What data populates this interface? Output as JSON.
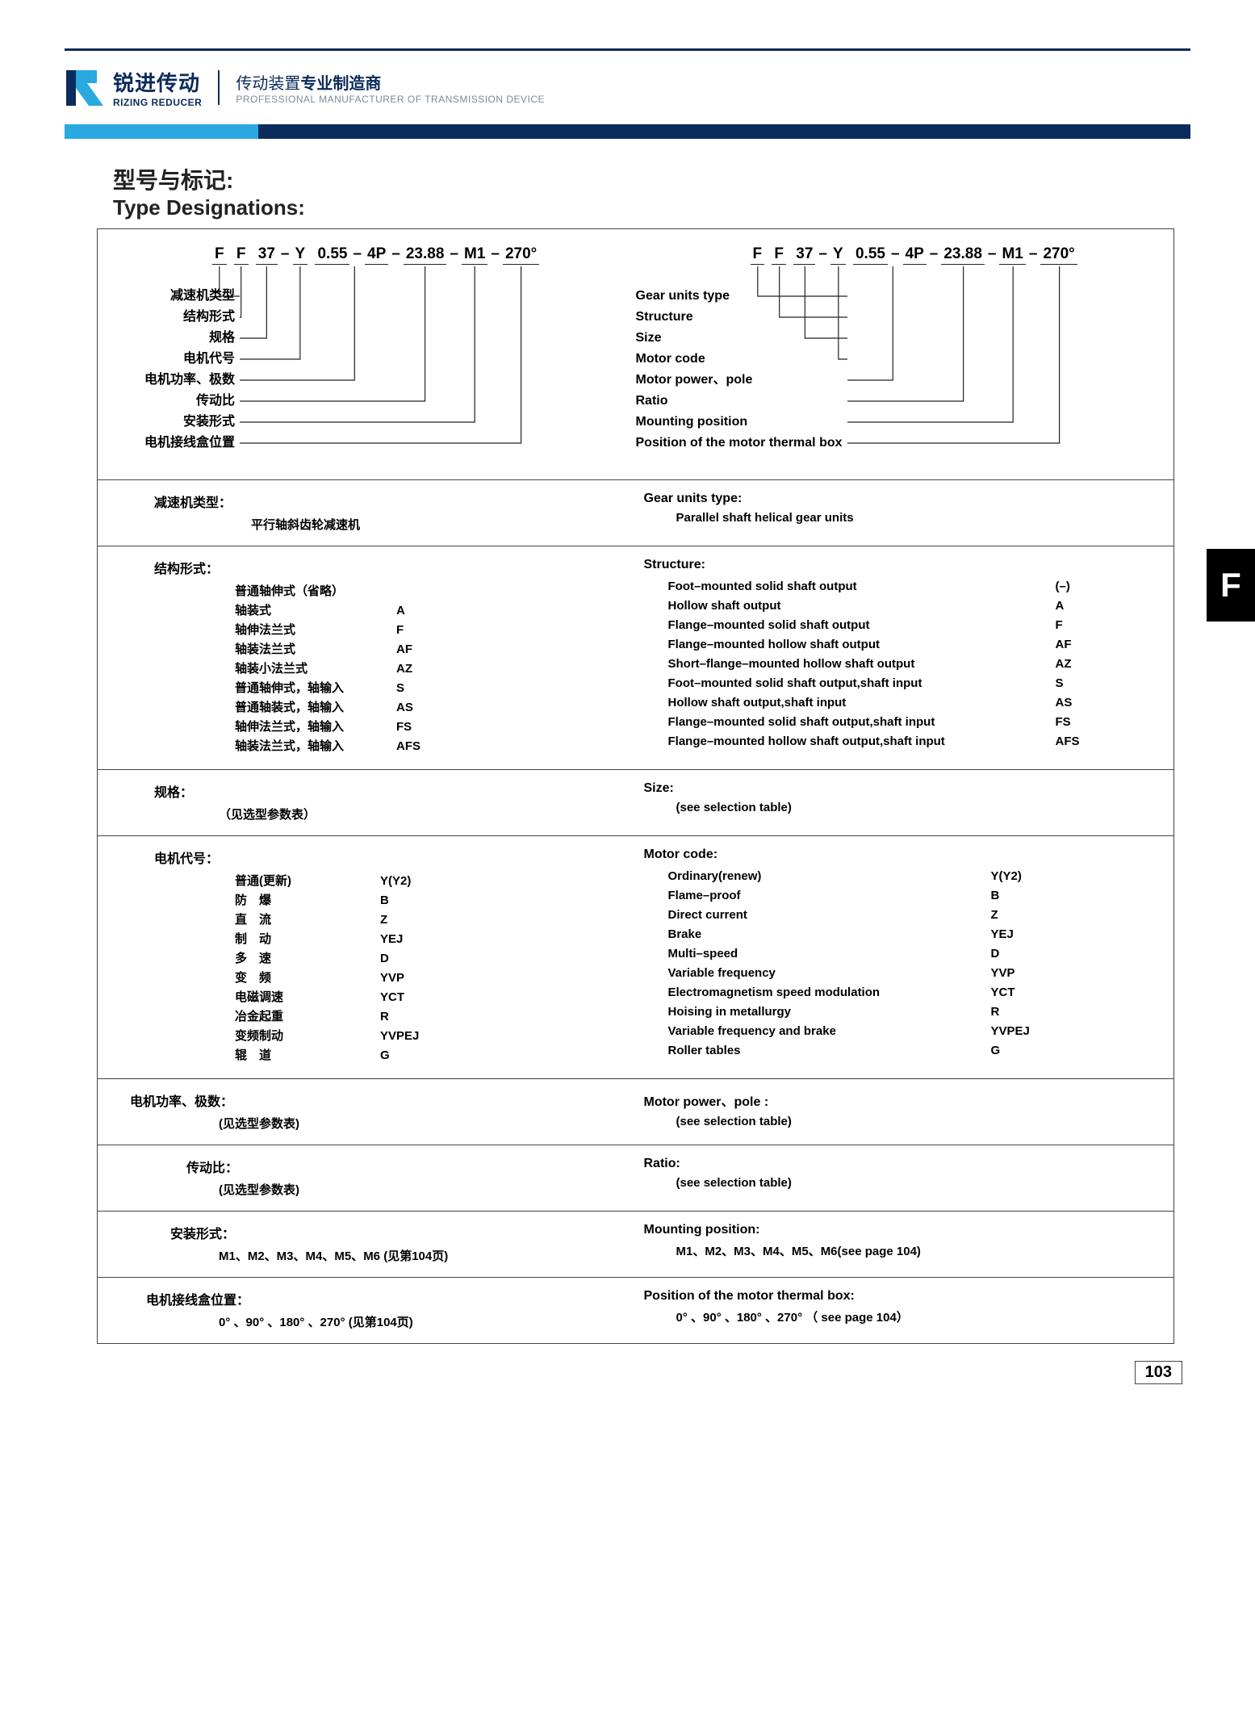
{
  "colors": {
    "navy": "#0a2b5c",
    "cyan": "#2aa9e0",
    "text": "#222222",
    "grey": "#7a8a9a",
    "border": "#444444"
  },
  "header": {
    "logo_cn": "锐进传动",
    "logo_en": "RIZING REDUCER",
    "tagline_cn_a": "传动装置",
    "tagline_cn_b": "专业制造商",
    "tagline_en": "PROFESSIONAL MANUFACTURER OF TRANSMISSION DEVICE"
  },
  "title": {
    "cn": "型号与标记:",
    "en": "Type Designations:"
  },
  "designation": {
    "groups": [
      "F",
      "F",
      "37",
      "Y",
      "0.55",
      "4P",
      "23.88",
      "M1",
      "270°"
    ],
    "labels_cn": [
      "减速机类型",
      "结构形式",
      "规格",
      "电机代号",
      "电机功率、极数",
      "传动比",
      "安装形式",
      "电机接线盒位置"
    ],
    "labels_en": [
      "Gear units type",
      "Structure",
      "Size",
      "Motor code",
      "Motor power、pole",
      "Ratio",
      "Mounting position",
      "Position of the motor thermal box"
    ]
  },
  "gear_type": {
    "cn_h": "减速机类型：",
    "cn_v": "平行轴斜齿轮减速机",
    "en_h": "Gear units type:",
    "en_v": "Parallel shaft helical gear units"
  },
  "structure": {
    "cn_h": "结构形式：",
    "en_h": "Structure:",
    "cn_items": [
      {
        "label": "普通轴伸式（省略）",
        "code": ""
      },
      {
        "label": "轴装式",
        "code": "A"
      },
      {
        "label": "轴伸法兰式",
        "code": "F"
      },
      {
        "label": "轴装法兰式",
        "code": "AF"
      },
      {
        "label": "轴装小法兰式",
        "code": "AZ"
      },
      {
        "label": "普通轴伸式，轴输入",
        "code": "S"
      },
      {
        "label": "普通轴装式，轴输入",
        "code": "AS"
      },
      {
        "label": "轴伸法兰式，轴输入",
        "code": "FS"
      },
      {
        "label": "轴装法兰式，轴输入",
        "code": "AFS"
      }
    ],
    "en_items": [
      {
        "label": "Foot–mounted solid shaft output",
        "code": "(–)"
      },
      {
        "label": "Hollow shaft output",
        "code": "A"
      },
      {
        "label": "Flange–mounted solid shaft output",
        "code": "F"
      },
      {
        "label": "Flange–mounted hollow shaft output",
        "code": "AF"
      },
      {
        "label": "Short–flange–mounted hollow shaft output",
        "code": "AZ"
      },
      {
        "label": "Foot–mounted solid shaft output,shaft input",
        "code": "S"
      },
      {
        "label": "Hollow shaft output,shaft input",
        "code": "AS"
      },
      {
        "label": "Flange–mounted solid shaft output,shaft input",
        "code": "FS"
      },
      {
        "label": "Flange–mounted hollow shaft output,shaft input",
        "code": "AFS"
      }
    ]
  },
  "size": {
    "cn_h": "规格：",
    "cn_v": "（见选型参数表）",
    "en_h": "Size:",
    "en_v": "(see selection table)"
  },
  "motor_code": {
    "cn_h": "电机代号：",
    "en_h": "Motor code:",
    "cn_items": [
      {
        "label": "普通(更新)",
        "code": "Y(Y2)"
      },
      {
        "label": "防　爆",
        "code": "B"
      },
      {
        "label": "直　流",
        "code": "Z"
      },
      {
        "label": "制　动",
        "code": "YEJ"
      },
      {
        "label": "多　速",
        "code": "D"
      },
      {
        "label": "变　频",
        "code": "YVP"
      },
      {
        "label": "电磁调速",
        "code": "YCT"
      },
      {
        "label": "冶金起重",
        "code": "R"
      },
      {
        "label": "变频制动",
        "code": "YVPEJ"
      },
      {
        "label": "辊　道",
        "code": "G"
      }
    ],
    "en_items": [
      {
        "label": "Ordinary(renew)",
        "code": "Y(Y2)"
      },
      {
        "label": "Flame–proof",
        "code": "B"
      },
      {
        "label": "Direct current",
        "code": "Z"
      },
      {
        "label": "Brake",
        "code": "YEJ"
      },
      {
        "label": "Multi–speed",
        "code": "D"
      },
      {
        "label": "Variable frequency",
        "code": "YVP"
      },
      {
        "label": "Electromagnetism speed modulation",
        "code": "YCT"
      },
      {
        "label": "Hoising in metallurgy",
        "code": "R"
      },
      {
        "label": "Variable frequency and brake",
        "code": "YVPEJ"
      },
      {
        "label": "Roller tables",
        "code": "G"
      }
    ]
  },
  "motor_power": {
    "cn_h": "电机功率、极数：",
    "cn_v": "(见选型参数表)",
    "en_h": "Motor power、pole :",
    "en_v": "(see selection table)"
  },
  "ratio": {
    "cn_h": "传动比：",
    "cn_v": "(见选型参数表)",
    "en_h": "Ratio:",
    "en_v": "(see selection table)"
  },
  "mounting": {
    "cn_h": "安装形式：",
    "cn_v": "M1、M2、M3、M4、M5、M6  (见第104页)",
    "en_h": "Mounting position:",
    "en_v": "M1、M2、M3、M4、M5、M6(see page 104)"
  },
  "thermal": {
    "cn_h": "电机接线盒位置：",
    "cn_v": "0° 、90° 、180° 、270°  (见第104页)",
    "en_h": "Position of the motor thermal box:",
    "en_v": "0° 、90° 、180° 、270° （ see page 104）"
  },
  "side_tab": "F",
  "page_num": "103"
}
